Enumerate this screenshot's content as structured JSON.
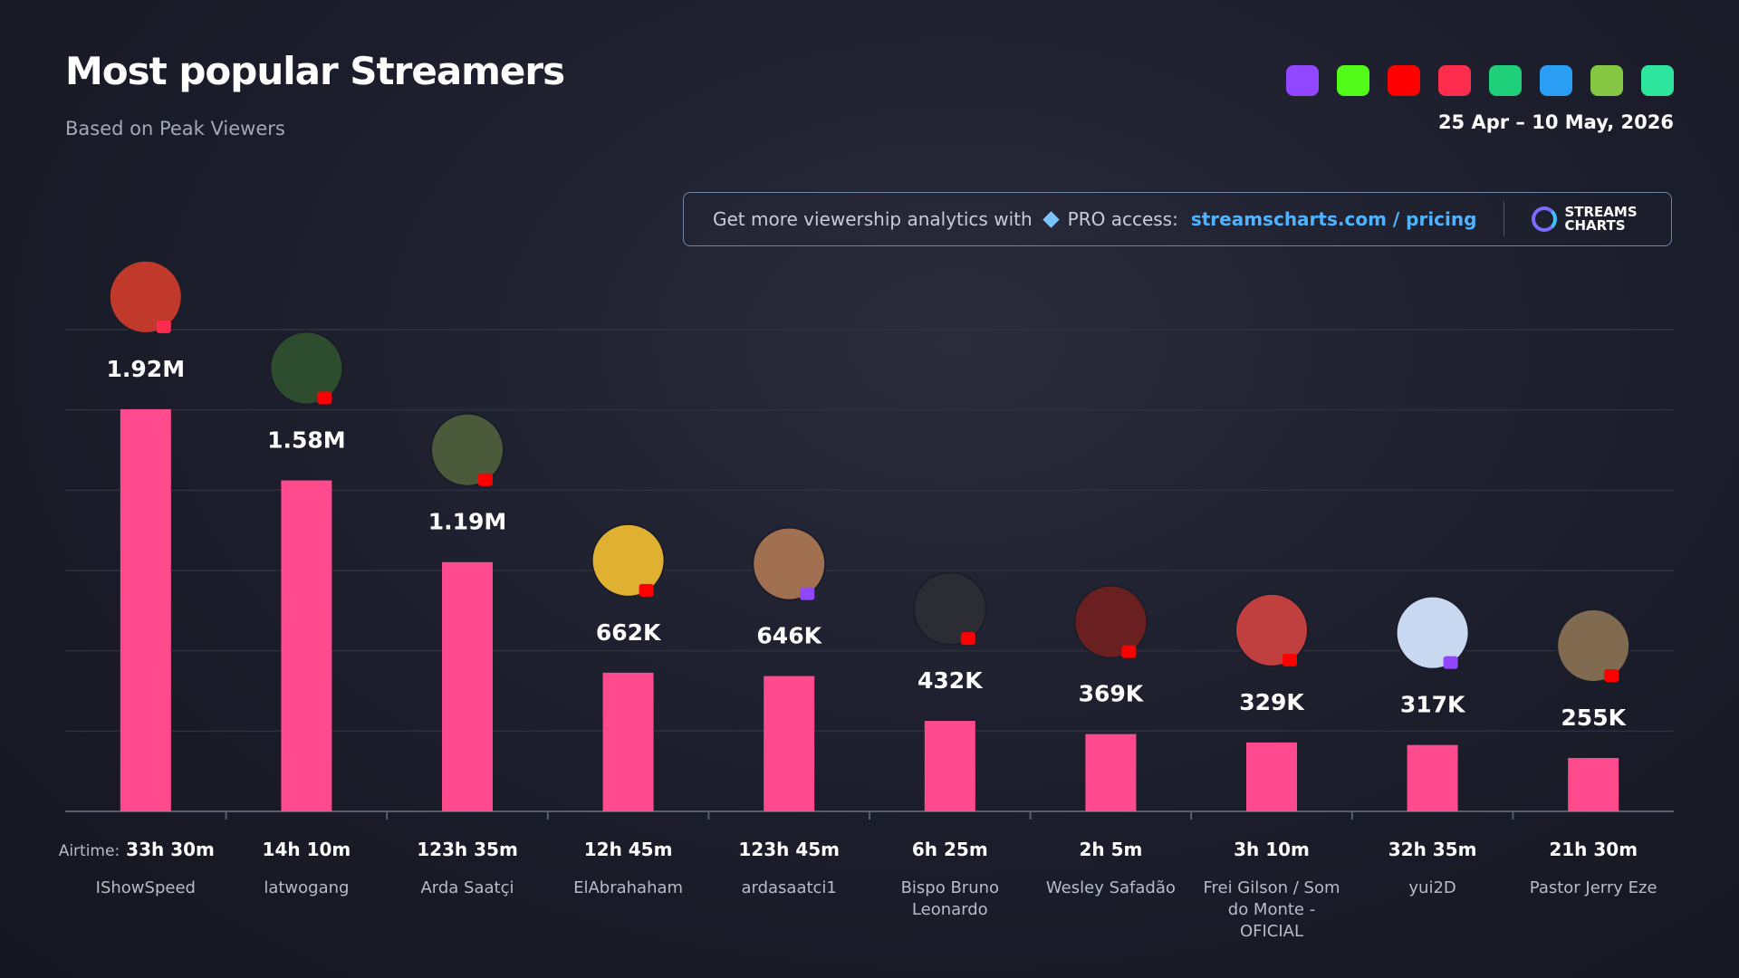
{
  "chart_data": {
    "type": "bar",
    "title": "Most popular Streamers",
    "subtitle": "Based on Peak Viewers",
    "date_range": "25 Apr – 10 May, 2026",
    "promo": {
      "text": "Get more viewership analytics with",
      "pro": "PRO access:",
      "link": "streamscharts.com / pricing"
    },
    "logo": [
      "STREAMS",
      "CHARTS"
    ],
    "categories": [
      "IShowSpeed",
      "latwogang",
      "Arda Saatçi",
      "ElAbrahaham",
      "ardasaatci1",
      "Bispo Bruno Leonardo",
      "Wesley Safadão",
      "Frei Gilson / Som do Monte - OFICIAL",
      "yui2D",
      "Pastor Jerry Eze"
    ],
    "values": [
      1920000,
      1580000,
      1190000,
      662000,
      646000,
      432000,
      369000,
      329000,
      317000,
      255000
    ],
    "value_labels": [
      "1.92M",
      "1.58M",
      "1.19M",
      "662K",
      "646K",
      "432K",
      "369K",
      "329K",
      "317K",
      "255K"
    ],
    "airtime_label": "Airtime:",
    "airtime": [
      "33h 30m",
      "14h 10m",
      "123h 35m",
      "12h 45m",
      "123h 45m",
      "6h 25m",
      "2h 5m",
      "3h 10m",
      "32h 35m",
      "21h 30m"
    ],
    "color": "#ff4a8d",
    "ylim": [
      0,
      2300000
    ],
    "grid": true
  }
}
